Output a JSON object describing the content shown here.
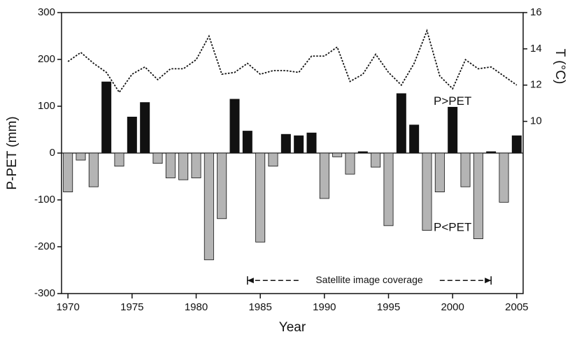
{
  "chart_data": {
    "type": "bar",
    "x": [
      1970,
      1971,
      1972,
      1973,
      1974,
      1975,
      1976,
      1977,
      1978,
      1979,
      1980,
      1981,
      1982,
      1983,
      1984,
      1985,
      1986,
      1987,
      1988,
      1989,
      1990,
      1991,
      1992,
      1993,
      1994,
      1995,
      1996,
      1997,
      1998,
      1999,
      2000,
      2001,
      2002,
      2003,
      2004,
      2005
    ],
    "series": [
      {
        "type": "bar",
        "positive_color": "#111111",
        "negative_color": "#b4b4b4",
        "values": [
          -83,
          -15,
          -72,
          152,
          -28,
          77,
          108,
          -22,
          -53,
          -57,
          -53,
          -228,
          -140,
          115,
          47,
          -190,
          -28,
          40,
          37,
          43,
          -97,
          -8,
          -45,
          3,
          -30,
          -155,
          127,
          60,
          -165,
          -83,
          98,
          -72,
          -183,
          3,
          -105,
          37
        ]
      },
      {
        "type": "line",
        "axis": "y2",
        "color": "#111111",
        "values": [
          13.3,
          13.8,
          13.2,
          12.7,
          11.6,
          12.6,
          13.0,
          12.3,
          12.9,
          12.9,
          13.4,
          14.7,
          12.6,
          12.7,
          13.2,
          12.6,
          12.8,
          12.8,
          12.7,
          13.6,
          13.6,
          14.1,
          12.2,
          12.6,
          13.7,
          12.7,
          12.0,
          13.2,
          15.0,
          12.5,
          11.8,
          13.4,
          12.9,
          13.0,
          12.5,
          12.0
        ]
      }
    ],
    "xlabel": "Year",
    "ylabel": "P-PET (mm)",
    "y2label": "T (°C)",
    "xlim": [
      1969.5,
      2005.5
    ],
    "xticks": [
      1970,
      1975,
      1980,
      1985,
      1990,
      1995,
      2000,
      2005
    ],
    "ylim": [
      -300,
      300
    ],
    "yticks": [
      -300,
      -200,
      -100,
      0,
      100,
      200,
      300
    ],
    "y2lim": [
      0.5,
      16
    ],
    "y2ticks": [
      10,
      12,
      14,
      16
    ],
    "annotations": [
      {
        "text": "P>PET",
        "x": 2000,
        "y": 110
      },
      {
        "text": "P<PET",
        "x": 2000,
        "y": -160
      }
    ],
    "coverage": {
      "text": "Satellite image coverage",
      "start": 1984,
      "end": 2003,
      "y": -272
    }
  }
}
